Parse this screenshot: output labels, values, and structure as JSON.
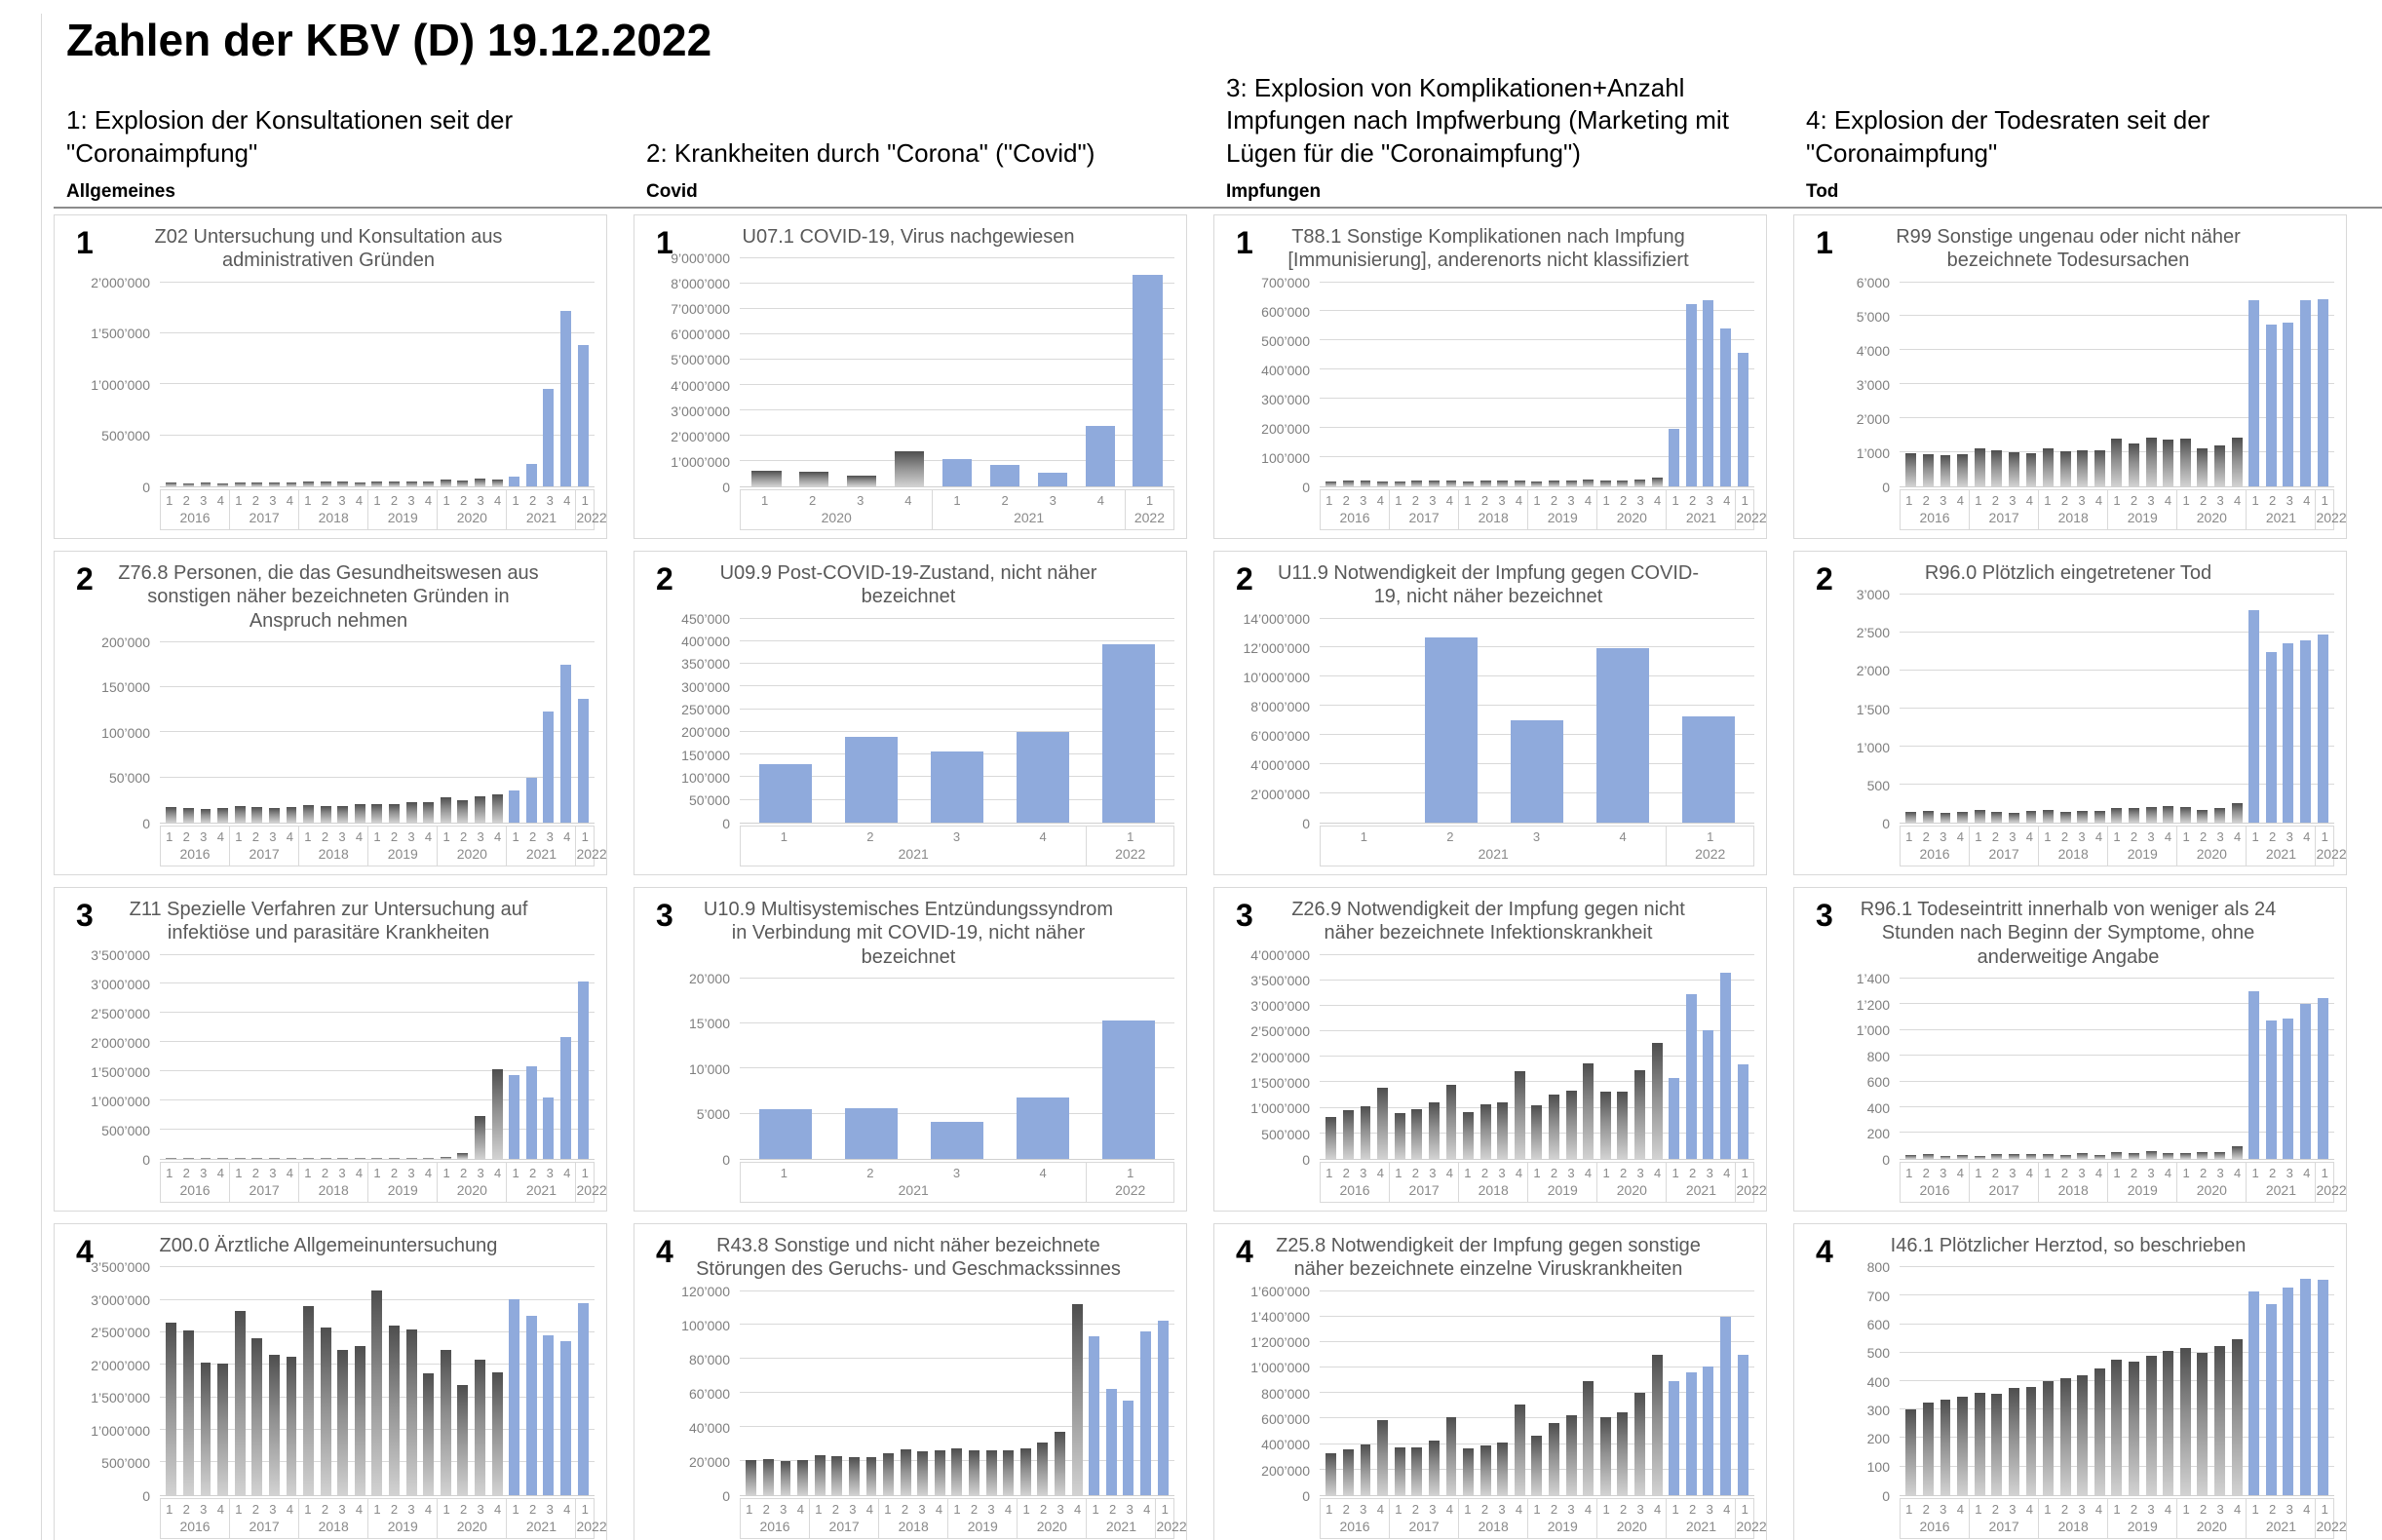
{
  "page_title": "Zahlen der KBV (D) 19.12.2022",
  "columns": [
    {
      "heading": "1: Explosion der Konsultationen seit der \"Coronaimpfung\"",
      "category": "Allgemeines"
    },
    {
      "heading": "2: Krankheiten durch \"Corona\" (\"Covid\")",
      "category": "Covid"
    },
    {
      "heading": "3: Explosion von Komplikationen+Anzahl Impfungen nach Impfwerbung (Marketing mit Lügen für die \"Coronaimpfung\")",
      "category": "Impfungen"
    },
    {
      "heading": "4: Explosion der Todesraten seit der \"Coronaimpfung\"",
      "category": "Tod"
    }
  ],
  "colors": {
    "highlight_blue": "#8faadc",
    "bar_gray_top": "#4e4e4e",
    "bar_gray_bottom": "#d2d2d2",
    "grid_line": "#d9d9d9",
    "chart_title_gray": "#595959",
    "axis_text_gray": "#8a8a8a"
  },
  "chart_data": [
    {
      "id": "z02",
      "number": "1",
      "type": "bar",
      "title": "Z02 Untersuchung und Konsultation aus administrativen Gründen",
      "ylim": [
        0,
        2000000
      ],
      "ytick_step": 500000,
      "years": [
        "2016",
        "2017",
        "2018",
        "2019",
        "2020",
        "2021",
        "2022"
      ],
      "quarters_per_year": [
        4,
        4,
        4,
        4,
        4,
        4,
        1
      ],
      "values": [
        35000,
        30000,
        38000,
        30000,
        38000,
        37000,
        40000,
        37000,
        45000,
        42000,
        45000,
        40000,
        47000,
        45000,
        50000,
        46000,
        62000,
        55000,
        75000,
        62000,
        95000,
        220000,
        950000,
        1720000,
        1380000
      ],
      "highlight_from": 20
    },
    {
      "id": "u07-1",
      "number": "1",
      "type": "bar",
      "title": "U07.1 COVID-19, Virus nachgewiesen",
      "ylim": [
        0,
        9000000
      ],
      "ytick_step": 1000000,
      "years": [
        "2020",
        "2021",
        "2022"
      ],
      "quarters_per_year": [
        4,
        4,
        1
      ],
      "values": [
        600000,
        570000,
        420000,
        1370000,
        1080000,
        830000,
        540000,
        2400000,
        8350000
      ],
      "highlight_from": 4
    },
    {
      "id": "t88-1",
      "number": "1",
      "type": "bar",
      "title": "T88.1 Sonstige Komplikationen nach Impfung [Immunisierung], anderenorts nicht klassifiziert",
      "ylim": [
        0,
        700000
      ],
      "ytick_step": 100000,
      "years": [
        "2016",
        "2017",
        "2018",
        "2019",
        "2020",
        "2021",
        "2022"
      ],
      "quarters_per_year": [
        4,
        4,
        4,
        4,
        4,
        4,
        1
      ],
      "values": [
        15000,
        20000,
        18000,
        17000,
        16000,
        21000,
        20000,
        18000,
        16000,
        20000,
        19000,
        21000,
        17000,
        21000,
        20000,
        23000,
        20000,
        21000,
        23000,
        28000,
        197000,
        625000,
        638000,
        543000,
        457000
      ],
      "highlight_from": 20
    },
    {
      "id": "r99",
      "number": "1",
      "type": "bar",
      "title": "R99 Sonstige ungenau oder nicht näher bezeichnete Todesursachen",
      "ylim": [
        0,
        6000
      ],
      "ytick_step": 1000,
      "years": [
        "2016",
        "2017",
        "2018",
        "2019",
        "2020",
        "2021",
        "2022"
      ],
      "quarters_per_year": [
        4,
        4,
        4,
        4,
        4,
        4,
        1
      ],
      "values": [
        980,
        950,
        900,
        940,
        1100,
        1050,
        1000,
        980,
        1120,
        1040,
        1060,
        1070,
        1400,
        1270,
        1430,
        1360,
        1400,
        1100,
        1190,
        1440,
        5480,
        4750,
        4820,
        5480,
        5500
      ],
      "highlight_from": 20
    },
    {
      "id": "z76-8",
      "number": "2",
      "type": "bar",
      "title": "Z76.8 Personen, die das Gesundheitswesen aus sonstigen näher bezeichneten Gründen in Anspruch nehmen",
      "ylim": [
        0,
        200000
      ],
      "ytick_step": 50000,
      "years": [
        "2016",
        "2017",
        "2018",
        "2019",
        "2020",
        "2021",
        "2022"
      ],
      "quarters_per_year": [
        4,
        4,
        4,
        4,
        4,
        4,
        1
      ],
      "values": [
        17000,
        16000,
        15000,
        15500,
        18000,
        17000,
        16500,
        17000,
        19500,
        18500,
        18500,
        20000,
        20500,
        20500,
        23000,
        22500,
        28000,
        25000,
        29000,
        31000,
        35000,
        50000,
        123000,
        175000,
        137000
      ],
      "highlight_from": 20
    },
    {
      "id": "u09-9",
      "number": "2",
      "type": "bar",
      "title": "U09.9 Post-COVID-19-Zustand, nicht näher bezeichnet",
      "ylim": [
        0,
        450000
      ],
      "ytick_step": 50000,
      "years": [
        "2021",
        "2022"
      ],
      "quarters_per_year": [
        4,
        1
      ],
      "values": [
        128000,
        188000,
        157000,
        200000,
        393000
      ],
      "highlight_from": 0
    },
    {
      "id": "u11-9",
      "number": "2",
      "type": "bar",
      "title": "U11.9 Notwendigkeit der Impfung gegen COVID-19, nicht näher bezeichnet",
      "ylim": [
        0,
        14000000
      ],
      "ytick_step": 2000000,
      "years": [
        "2021",
        "2022"
      ],
      "quarters_per_year": [
        4,
        1
      ],
      "values": [
        0,
        12700000,
        7000000,
        11950000,
        7300000
      ],
      "highlight_from": 0
    },
    {
      "id": "r96-0",
      "number": "2",
      "type": "bar",
      "title": "R96.0 Plötzlich eingetretener Tod",
      "ylim": [
        0,
        3000
      ],
      "ytick_step": 500,
      "years": [
        "2016",
        "2017",
        "2018",
        "2019",
        "2020",
        "2021",
        "2022"
      ],
      "quarters_per_year": [
        4,
        4,
        4,
        4,
        4,
        4,
        1
      ],
      "values": [
        140,
        155,
        120,
        140,
        170,
        135,
        130,
        155,
        170,
        145,
        155,
        150,
        185,
        195,
        200,
        215,
        200,
        160,
        195,
        250,
        2800,
        2250,
        2360,
        2400,
        2480
      ],
      "highlight_from": 20
    },
    {
      "id": "z11",
      "number": "3",
      "type": "bar",
      "title": "Z11 Spezielle Verfahren zur Untersuchung auf infektiöse und parasitäre Krankheiten",
      "ylim": [
        0,
        3500000
      ],
      "ytick_step": 500000,
      "years": [
        "2016",
        "2017",
        "2018",
        "2019",
        "2020",
        "2021",
        "2022"
      ],
      "quarters_per_year": [
        4,
        4,
        4,
        4,
        4,
        4,
        1
      ],
      "values": [
        8000,
        8000,
        8000,
        8000,
        8000,
        8000,
        8000,
        8000,
        9000,
        9000,
        9000,
        9000,
        10000,
        10000,
        10000,
        10000,
        25000,
        90000,
        730000,
        1530000,
        1440000,
        1580000,
        1050000,
        2090000,
        3040000
      ],
      "highlight_from": 20
    },
    {
      "id": "u10-9",
      "number": "3",
      "type": "bar",
      "title": "U10.9 Multisystemisches Entzündungssyndrom in Verbindung mit COVID-19, nicht näher bezeichnet",
      "ylim": [
        0,
        20000
      ],
      "ytick_step": 5000,
      "years": [
        "2021",
        "2022"
      ],
      "quarters_per_year": [
        4,
        1
      ],
      "values": [
        5450,
        5600,
        4100,
        6800,
        15300
      ],
      "highlight_from": 0
    },
    {
      "id": "z26-9",
      "number": "3",
      "type": "bar",
      "title": "Z26.9 Notwendigkeit der Impfung gegen nicht näher bezeichnete Infektionskrankheit",
      "ylim": [
        0,
        4000000
      ],
      "ytick_step": 500000,
      "years": [
        "2016",
        "2017",
        "2018",
        "2019",
        "2020",
        "2021",
        "2022"
      ],
      "quarters_per_year": [
        4,
        4,
        4,
        4,
        4,
        4,
        1
      ],
      "values": [
        810000,
        960000,
        1030000,
        1400000,
        900000,
        980000,
        1100000,
        1440000,
        910000,
        1060000,
        1110000,
        1720000,
        1040000,
        1250000,
        1340000,
        1870000,
        1310000,
        1320000,
        1740000,
        2280000,
        1580000,
        3220000,
        2520000,
        3650000,
        1860000
      ],
      "highlight_from": 20
    },
    {
      "id": "r96-1",
      "number": "3",
      "type": "bar",
      "title": "R96.1 Todeseintritt innerhalb von weniger als 24 Stunden nach Beginn der Symptome, ohne anderweitige Angabe",
      "ylim": [
        0,
        1400
      ],
      "ytick_step": 200,
      "years": [
        "2016",
        "2017",
        "2018",
        "2019",
        "2020",
        "2021",
        "2022"
      ],
      "quarters_per_year": [
        4,
        4,
        4,
        4,
        4,
        4,
        1
      ],
      "values": [
        30,
        35,
        25,
        30,
        25,
        40,
        35,
        35,
        35,
        30,
        45,
        30,
        55,
        45,
        60,
        45,
        45,
        50,
        50,
        95,
        1300,
        1075,
        1090,
        1200,
        1250
      ],
      "highlight_from": 20
    },
    {
      "id": "z00-0",
      "number": "4",
      "type": "bar",
      "title": "Z00.0 Ärztliche Allgemeinuntersuchung",
      "ylim": [
        0,
        3500000
      ],
      "ytick_step": 500000,
      "years": [
        "2016",
        "2017",
        "2018",
        "2019",
        "2020",
        "2021",
        "2022"
      ],
      "quarters_per_year": [
        4,
        4,
        4,
        4,
        4,
        4,
        1
      ],
      "values": [
        2650000,
        2530000,
        2030000,
        2020000,
        2830000,
        2410000,
        2160000,
        2120000,
        2900000,
        2580000,
        2230000,
        2290000,
        3150000,
        2600000,
        2540000,
        1870000,
        2230000,
        1690000,
        2080000,
        1890000,
        3010000,
        2760000,
        2460000,
        2370000,
        2950000
      ],
      "highlight_from": 20
    },
    {
      "id": "r43-8",
      "number": "4",
      "type": "bar",
      "title": "R43.8 Sonstige und nicht näher bezeichnete Störungen des Geruchs- und Geschmackssinnes",
      "ylim": [
        0,
        120000
      ],
      "ytick_step": 20000,
      "years": [
        "2016",
        "2017",
        "2018",
        "2019",
        "2020",
        "2021",
        "2022"
      ],
      "quarters_per_year": [
        4,
        4,
        4,
        4,
        4,
        4,
        1
      ],
      "values": [
        20500,
        21000,
        20000,
        20500,
        23500,
        23000,
        22000,
        22500,
        24500,
        27000,
        25500,
        26000,
        27500,
        26500,
        26000,
        26000,
        27500,
        31000,
        37000,
        112500,
        93500,
        62500,
        55500,
        96000,
        102500
      ],
      "highlight_from": 20
    },
    {
      "id": "z25-8",
      "number": "4",
      "type": "bar",
      "title": "Z25.8 Notwendigkeit der Impfung gegen sonstige näher bezeichnete einzelne Viruskrankheiten",
      "ylim": [
        0,
        1600000
      ],
      "ytick_step": 200000,
      "years": [
        "2016",
        "2017",
        "2018",
        "2019",
        "2020",
        "2021",
        "2022"
      ],
      "quarters_per_year": [
        4,
        4,
        4,
        4,
        4,
        4,
        1
      ],
      "values": [
        325000,
        360000,
        395000,
        590000,
        370000,
        375000,
        425000,
        610000,
        365000,
        385000,
        415000,
        710000,
        465000,
        565000,
        625000,
        890000,
        610000,
        650000,
        800000,
        1100000,
        890000,
        965000,
        1005000,
        1400000,
        1100000
      ],
      "highlight_from": 20
    },
    {
      "id": "i46-1",
      "number": "4",
      "type": "bar",
      "title": "I46.1 Plötzlicher Herztod, so beschrieben",
      "ylim": [
        0,
        800
      ],
      "ytick_step": 100,
      "years": [
        "2016",
        "2017",
        "2018",
        "2019",
        "2020",
        "2021",
        "2022"
      ],
      "quarters_per_year": [
        4,
        4,
        4,
        4,
        4,
        4,
        1
      ],
      "values": [
        300,
        325,
        335,
        345,
        360,
        355,
        375,
        380,
        400,
        410,
        420,
        445,
        475,
        468,
        490,
        505,
        515,
        500,
        523,
        547,
        715,
        670,
        728,
        758,
        755
      ],
      "highlight_from": 20
    }
  ]
}
